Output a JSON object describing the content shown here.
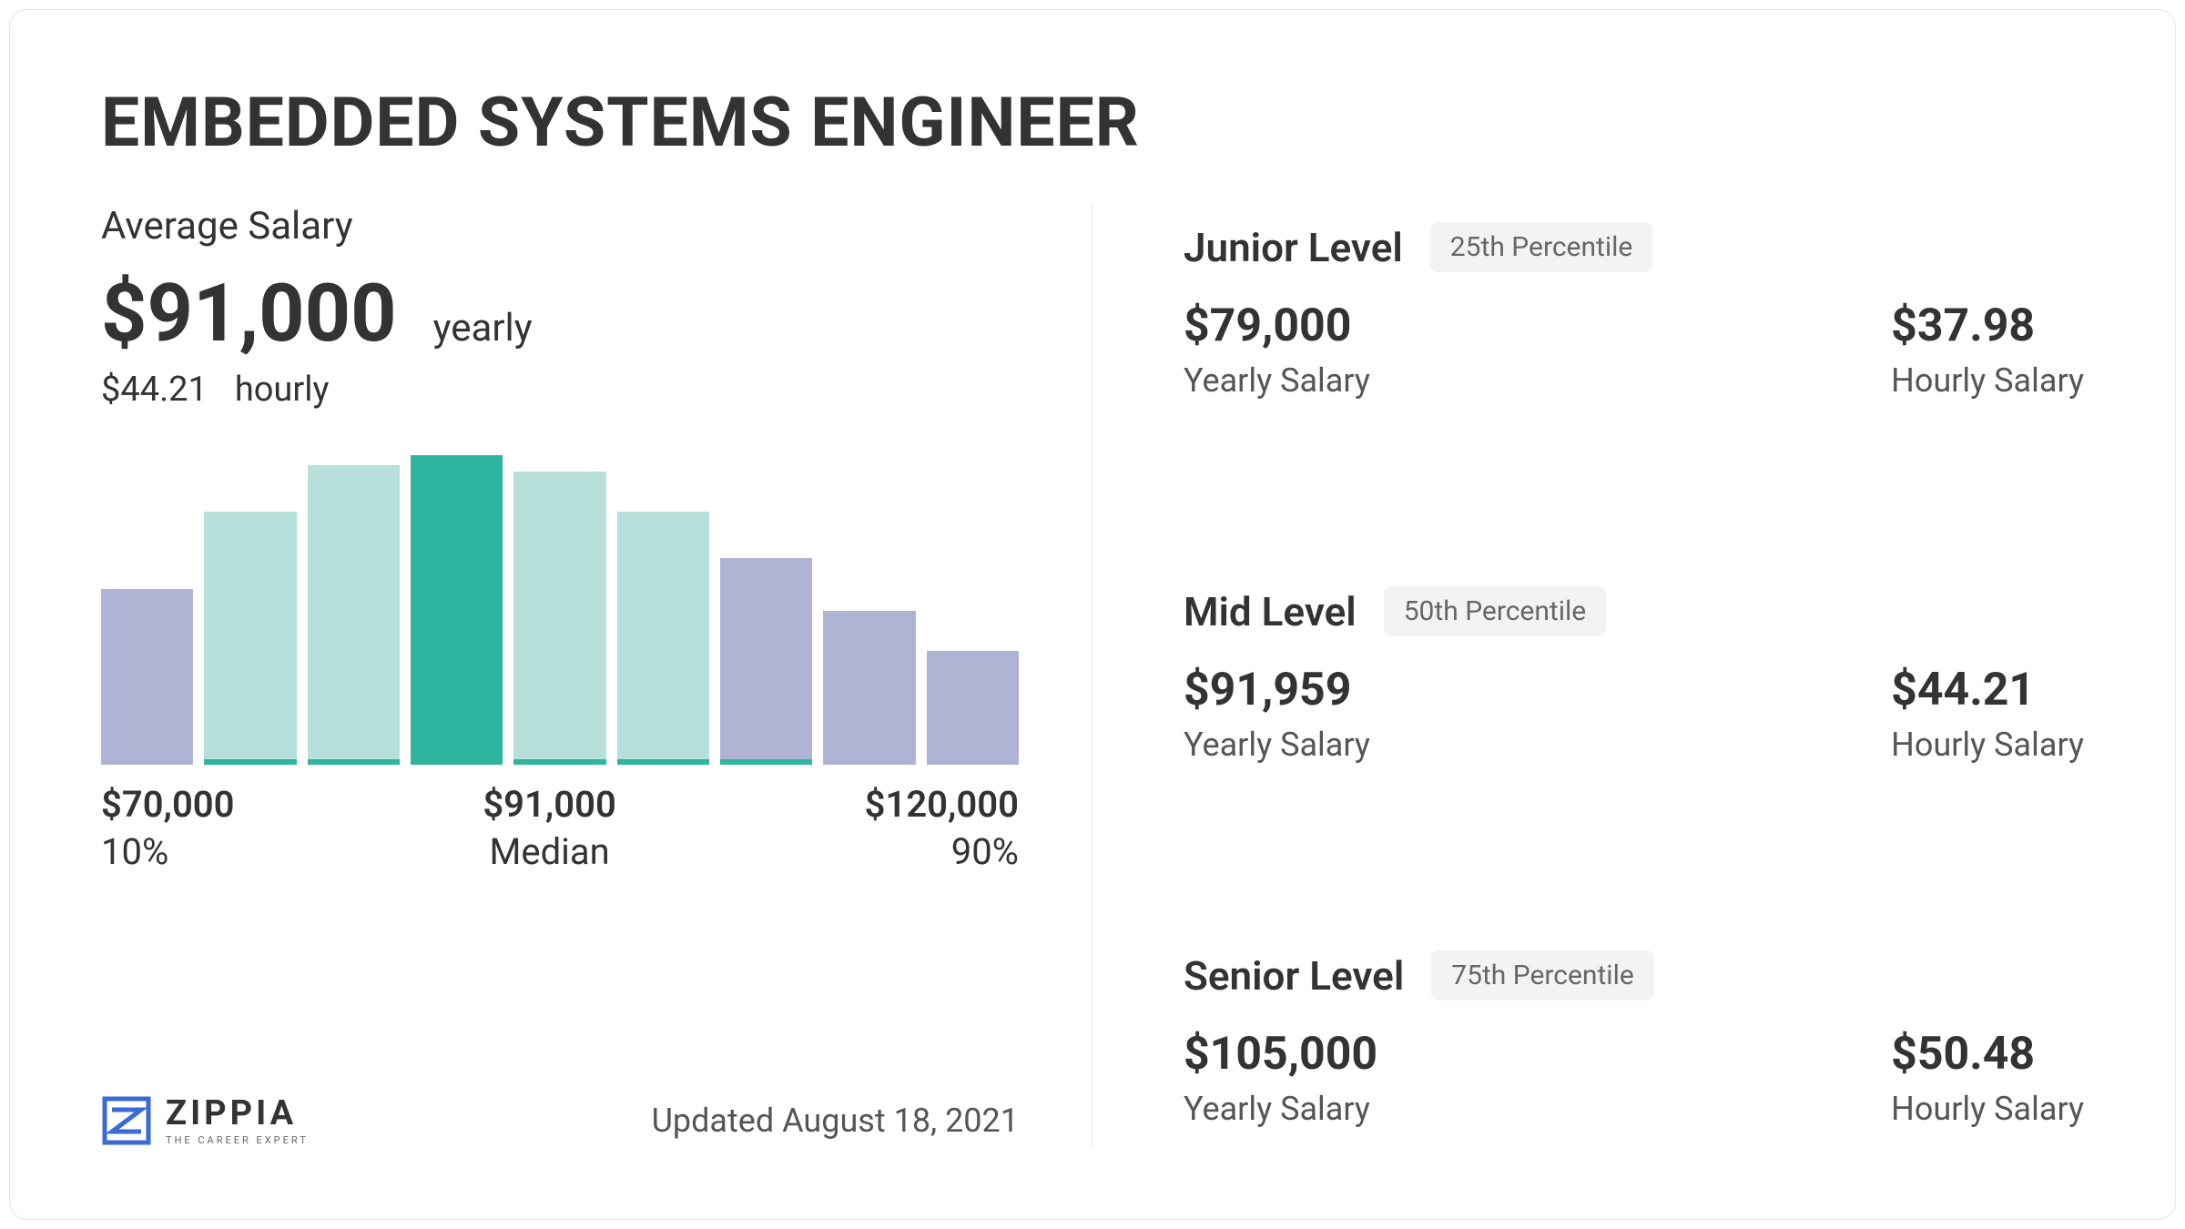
{
  "title": "EMBEDDED SYSTEMS ENGINEER",
  "average": {
    "label": "Average Salary",
    "yearly_value": "$91,000",
    "yearly_unit": "yearly",
    "hourly_value": "$44.21",
    "hourly_unit": "hourly"
  },
  "chart": {
    "type": "bar",
    "bars": [
      {
        "height_pct": 55,
        "color": "#b0b4d4",
        "underline": "#b0b4d4"
      },
      {
        "height_pct": 80,
        "color": "#b6e0d9",
        "underline": "#2fb4a0"
      },
      {
        "height_pct": 95,
        "color": "#b6e0d9",
        "underline": "#2fb4a0"
      },
      {
        "height_pct": 100,
        "color": "#2fb4a0",
        "underline": "#2fb4a0"
      },
      {
        "height_pct": 93,
        "color": "#b6e0d9",
        "underline": "#2fb4a0"
      },
      {
        "height_pct": 80,
        "color": "#b6e0d9",
        "underline": "#2fb4a0"
      },
      {
        "height_pct": 65,
        "color": "#b0b4d4",
        "underline": "#2fb4a0"
      },
      {
        "height_pct": 48,
        "color": "#b0b4d4",
        "underline": "#b0b4d4"
      },
      {
        "height_pct": 35,
        "color": "#b0b4d4",
        "underline": "#b0b4d4"
      }
    ],
    "axis": {
      "left": {
        "value": "$70,000",
        "label": "10%"
      },
      "middle": {
        "value": "$91,000",
        "label": "Median"
      },
      "right": {
        "value": "$120,000",
        "label": "90%"
      }
    }
  },
  "branding": {
    "name": "ZIPPIA",
    "tagline": "THE CAREER EXPERT",
    "logo_color": "#3a6bd4"
  },
  "updated": "Updated August 18, 2021",
  "levels": [
    {
      "name": "Junior Level",
      "badge": "25th Percentile",
      "yearly_value": "$79,000",
      "yearly_label": "Yearly Salary",
      "hourly_value": "$37.98",
      "hourly_label": "Hourly Salary"
    },
    {
      "name": "Mid Level",
      "badge": "50th Percentile",
      "yearly_value": "$91,959",
      "yearly_label": "Yearly Salary",
      "hourly_value": "$44.21",
      "hourly_label": "Hourly Salary"
    },
    {
      "name": "Senior Level",
      "badge": "75th Percentile",
      "yearly_value": "$105,000",
      "yearly_label": "Yearly Salary",
      "hourly_value": "$50.48",
      "hourly_label": "Hourly Salary"
    }
  ]
}
